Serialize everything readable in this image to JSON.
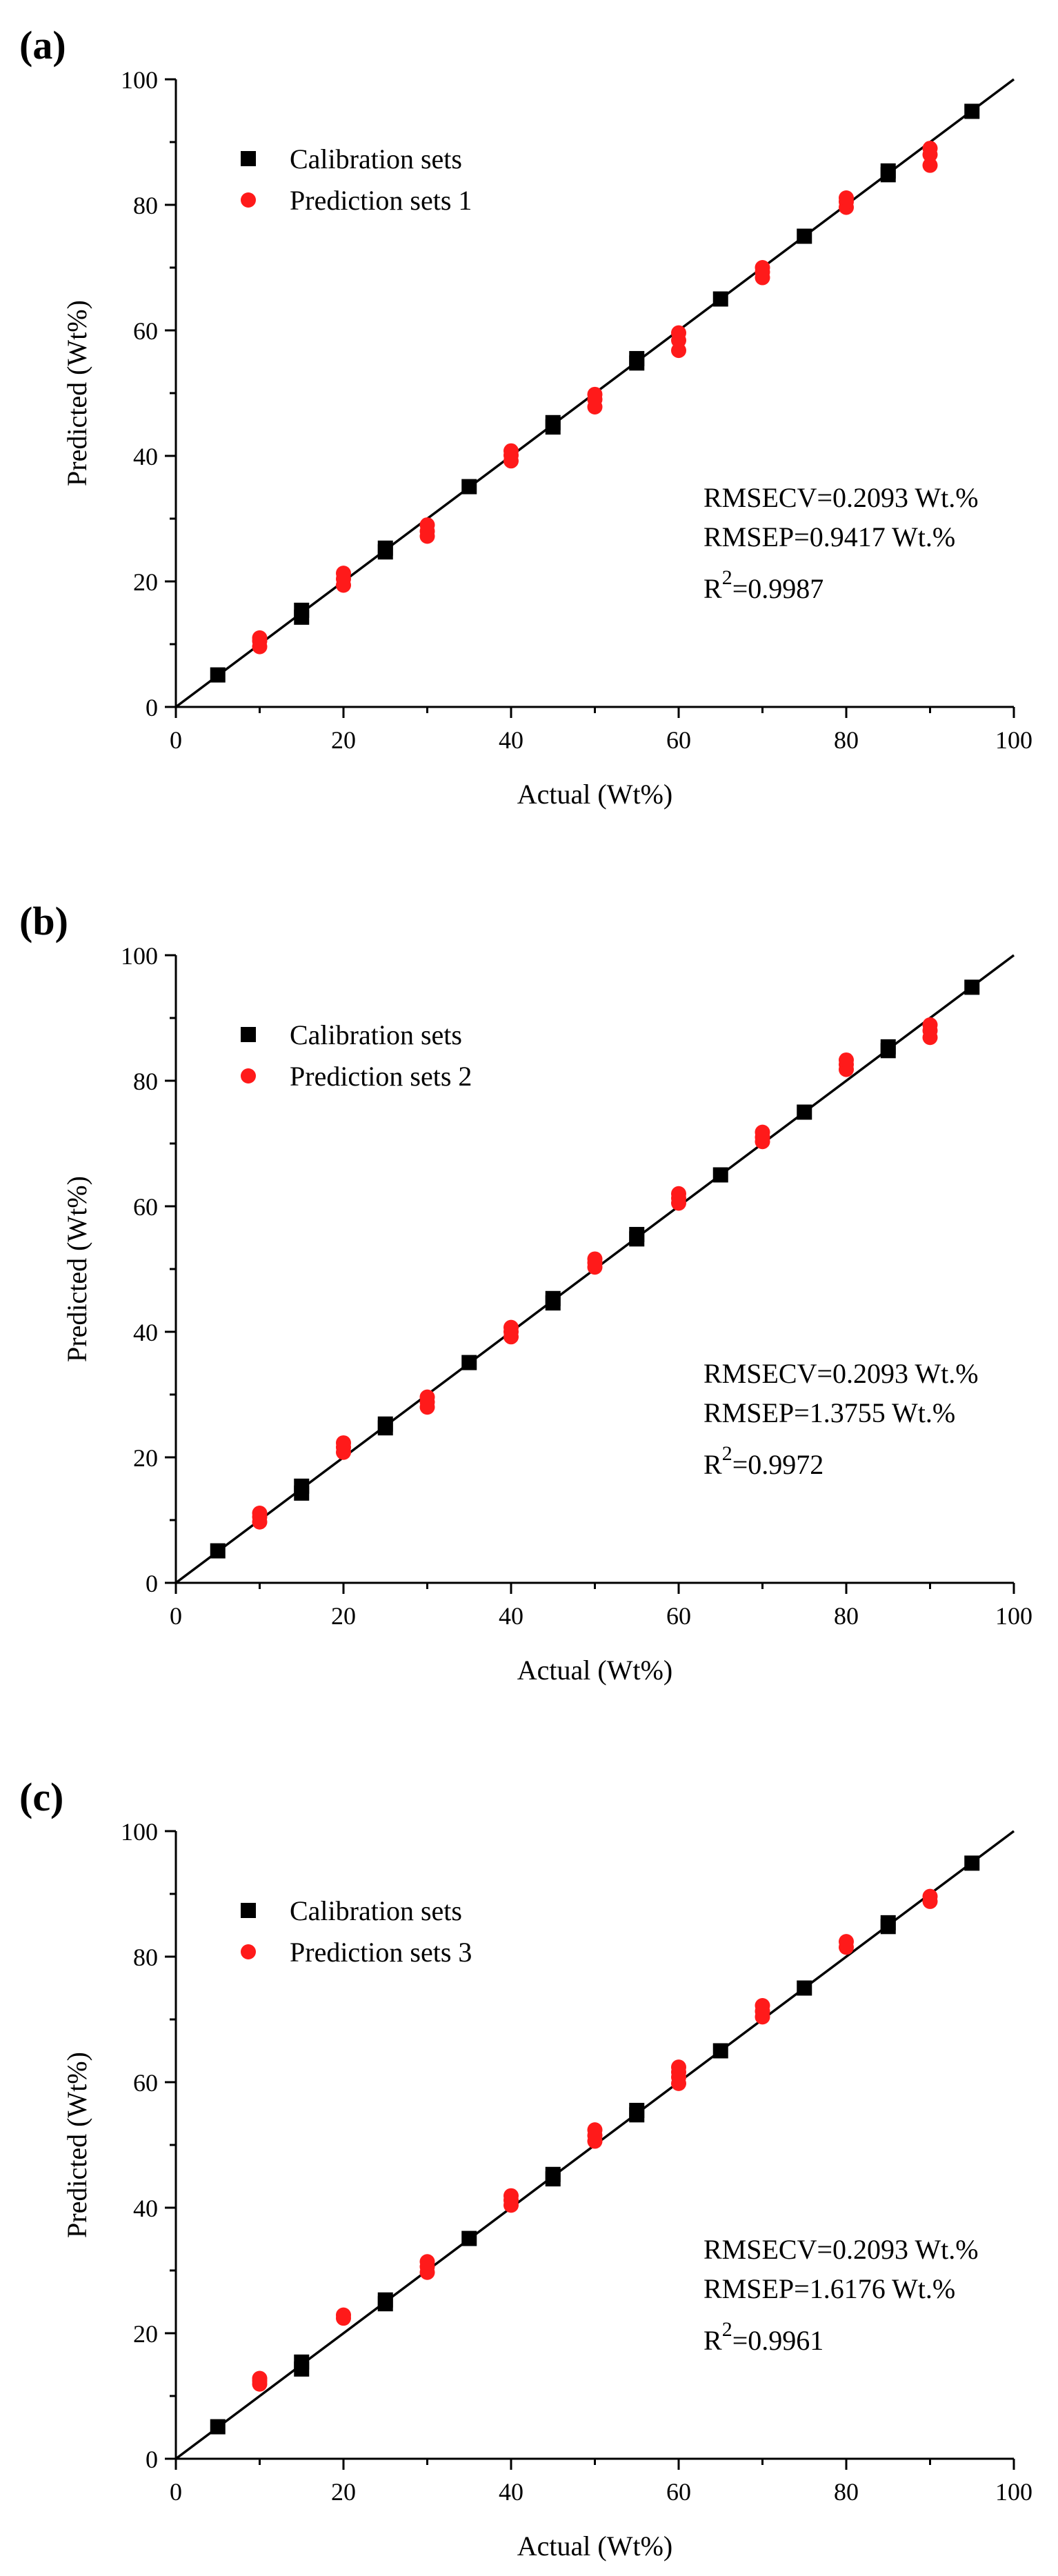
{
  "colors": {
    "calibration": "#000000",
    "prediction": "#ff1a1a",
    "axis": "#000000",
    "fit_line": "#000000"
  },
  "chart_data": [
    {
      "type": "scatter",
      "panel_label": "(a)",
      "xlabel": "Actual (Wt%)",
      "ylabel": "Predicted (Wt%)",
      "xlim": [
        0,
        100
      ],
      "ylim": [
        0,
        100
      ],
      "x_ticks": [
        0,
        20,
        40,
        60,
        80,
        100
      ],
      "y_ticks": [
        0,
        20,
        40,
        60,
        80,
        100
      ],
      "x_tick_labels": [
        "0",
        "20",
        "40",
        "60",
        "80",
        "100"
      ],
      "y_tick_labels": [
        "0",
        "20",
        "40",
        "60",
        "80",
        "100"
      ],
      "legend_position": "top-left",
      "identity_line": {
        "x": [
          0,
          100
        ],
        "y": [
          0,
          100
        ]
      },
      "series": [
        {
          "name": "Calibration sets",
          "marker": "square",
          "points": [
            {
              "x": 5,
              "y": 5.1
            },
            {
              "x": 15,
              "y": 14.3
            },
            {
              "x": 15,
              "y": 15.4
            },
            {
              "x": 25,
              "y": 24.7
            },
            {
              "x": 25,
              "y": 25.3
            },
            {
              "x": 35,
              "y": 35.1
            },
            {
              "x": 45,
              "y": 44.6
            },
            {
              "x": 45,
              "y": 45.3
            },
            {
              "x": 55,
              "y": 54.8
            },
            {
              "x": 55,
              "y": 55.5
            },
            {
              "x": 65,
              "y": 65.0
            },
            {
              "x": 75,
              "y": 75.0
            },
            {
              "x": 85,
              "y": 84.8
            },
            {
              "x": 85,
              "y": 85.4
            },
            {
              "x": 95,
              "y": 94.9
            }
          ]
        },
        {
          "name": "Prediction sets 1",
          "marker": "circle",
          "points": [
            {
              "x": 10,
              "y": 9.6
            },
            {
              "x": 10,
              "y": 10.5
            },
            {
              "x": 10,
              "y": 11.0
            },
            {
              "x": 20,
              "y": 19.4
            },
            {
              "x": 20,
              "y": 20.4
            },
            {
              "x": 20,
              "y": 21.3
            },
            {
              "x": 30,
              "y": 27.2
            },
            {
              "x": 30,
              "y": 28.0
            },
            {
              "x": 30,
              "y": 29.0
            },
            {
              "x": 40,
              "y": 39.2
            },
            {
              "x": 40,
              "y": 40.1
            },
            {
              "x": 40,
              "y": 40.8
            },
            {
              "x": 50,
              "y": 47.8
            },
            {
              "x": 50,
              "y": 49.0
            },
            {
              "x": 50,
              "y": 49.8
            },
            {
              "x": 60,
              "y": 56.8
            },
            {
              "x": 60,
              "y": 58.4
            },
            {
              "x": 60,
              "y": 59.6
            },
            {
              "x": 70,
              "y": 68.4
            },
            {
              "x": 70,
              "y": 69.3
            },
            {
              "x": 70,
              "y": 70.0
            },
            {
              "x": 80,
              "y": 79.6
            },
            {
              "x": 80,
              "y": 80.5
            },
            {
              "x": 80,
              "y": 81.1
            },
            {
              "x": 90,
              "y": 86.3
            },
            {
              "x": 90,
              "y": 88.0
            },
            {
              "x": 90,
              "y": 89.0
            }
          ]
        }
      ],
      "annotations": {
        "rmsecv": "RMSECV=0.2093 Wt.%",
        "rmsep": "RMSEP=0.9417 Wt.%",
        "r2_prefix": "R",
        "r2_sup": "2",
        "r2_value": "=0.9987"
      }
    },
    {
      "type": "scatter",
      "panel_label": "(b)",
      "xlabel": "Actual (Wt%)",
      "ylabel": "Predicted (Wt%)",
      "xlim": [
        0,
        100
      ],
      "ylim": [
        0,
        100
      ],
      "x_ticks": [
        0,
        20,
        40,
        60,
        80,
        100
      ],
      "y_ticks": [
        0,
        20,
        40,
        60,
        80,
        100
      ],
      "x_tick_labels": [
        "0",
        "20",
        "40",
        "60",
        "80",
        "100"
      ],
      "y_tick_labels": [
        "0",
        "20",
        "40",
        "60",
        "80",
        "100"
      ],
      "legend_position": "top-left",
      "identity_line": {
        "x": [
          0,
          100
        ],
        "y": [
          0,
          100
        ]
      },
      "series": [
        {
          "name": "Calibration sets",
          "marker": "square",
          "points": [
            {
              "x": 5,
              "y": 5.1
            },
            {
              "x": 15,
              "y": 14.3
            },
            {
              "x": 15,
              "y": 15.4
            },
            {
              "x": 25,
              "y": 24.7
            },
            {
              "x": 25,
              "y": 25.3
            },
            {
              "x": 35,
              "y": 35.1
            },
            {
              "x": 45,
              "y": 44.6
            },
            {
              "x": 45,
              "y": 45.3
            },
            {
              "x": 55,
              "y": 54.8
            },
            {
              "x": 55,
              "y": 55.5
            },
            {
              "x": 65,
              "y": 65.0
            },
            {
              "x": 75,
              "y": 75.0
            },
            {
              "x": 85,
              "y": 84.8
            },
            {
              "x": 85,
              "y": 85.4
            },
            {
              "x": 95,
              "y": 94.9
            }
          ]
        },
        {
          "name": "Prediction sets 2",
          "marker": "circle",
          "points": [
            {
              "x": 10,
              "y": 9.7
            },
            {
              "x": 10,
              "y": 10.5
            },
            {
              "x": 10,
              "y": 11.1
            },
            {
              "x": 20,
              "y": 20.8
            },
            {
              "x": 20,
              "y": 21.6
            },
            {
              "x": 20,
              "y": 22.3
            },
            {
              "x": 30,
              "y": 28.0
            },
            {
              "x": 30,
              "y": 28.8
            },
            {
              "x": 30,
              "y": 29.6
            },
            {
              "x": 40,
              "y": 39.2
            },
            {
              "x": 40,
              "y": 40.0
            },
            {
              "x": 40,
              "y": 40.7
            },
            {
              "x": 50,
              "y": 50.3
            },
            {
              "x": 50,
              "y": 51.0
            },
            {
              "x": 50,
              "y": 51.6
            },
            {
              "x": 60,
              "y": 60.5
            },
            {
              "x": 60,
              "y": 61.3
            },
            {
              "x": 60,
              "y": 62.0
            },
            {
              "x": 70,
              "y": 70.3
            },
            {
              "x": 70,
              "y": 71.0
            },
            {
              "x": 70,
              "y": 71.8
            },
            {
              "x": 80,
              "y": 81.8
            },
            {
              "x": 80,
              "y": 82.6
            },
            {
              "x": 80,
              "y": 83.3
            },
            {
              "x": 90,
              "y": 86.9
            },
            {
              "x": 90,
              "y": 88.0
            },
            {
              "x": 90,
              "y": 88.9
            }
          ]
        }
      ],
      "annotations": {
        "rmsecv": "RMSECV=0.2093 Wt.%",
        "rmsep": "RMSEP=1.3755 Wt.%",
        "r2_prefix": "R",
        "r2_sup": "2",
        "r2_value": "=0.9972"
      }
    },
    {
      "type": "scatter",
      "panel_label": "(c)",
      "xlabel": "Actual (Wt%)",
      "ylabel": "Predicted (Wt%)",
      "xlim": [
        0,
        100
      ],
      "ylim": [
        0,
        100
      ],
      "x_ticks": [
        0,
        20,
        40,
        60,
        80,
        100
      ],
      "y_ticks": [
        0,
        20,
        40,
        60,
        80,
        100
      ],
      "x_tick_labels": [
        "0",
        "20",
        "40",
        "60",
        "80",
        "100"
      ],
      "y_tick_labels": [
        "0",
        "20",
        "40",
        "60",
        "80",
        "100"
      ],
      "legend_position": "top-left",
      "identity_line": {
        "x": [
          0,
          100
        ],
        "y": [
          0,
          100
        ]
      },
      "series": [
        {
          "name": "Calibration sets",
          "marker": "square",
          "points": [
            {
              "x": 5,
              "y": 5.1
            },
            {
              "x": 15,
              "y": 14.3
            },
            {
              "x": 15,
              "y": 15.4
            },
            {
              "x": 25,
              "y": 24.7
            },
            {
              "x": 25,
              "y": 25.3
            },
            {
              "x": 35,
              "y": 35.1
            },
            {
              "x": 45,
              "y": 44.6
            },
            {
              "x": 45,
              "y": 45.3
            },
            {
              "x": 55,
              "y": 54.8
            },
            {
              "x": 55,
              "y": 55.5
            },
            {
              "x": 65,
              "y": 65.0
            },
            {
              "x": 75,
              "y": 75.0
            },
            {
              "x": 85,
              "y": 84.8
            },
            {
              "x": 85,
              "y": 85.4
            },
            {
              "x": 95,
              "y": 94.9
            }
          ]
        },
        {
          "name": "Prediction sets 3",
          "marker": "circle",
          "points": [
            {
              "x": 10,
              "y": 11.9
            },
            {
              "x": 10,
              "y": 12.4
            },
            {
              "x": 10,
              "y": 12.8
            },
            {
              "x": 20,
              "y": 22.4
            },
            {
              "x": 20,
              "y": 22.9
            },
            {
              "x": 30,
              "y": 29.7
            },
            {
              "x": 30,
              "y": 30.6
            },
            {
              "x": 30,
              "y": 31.4
            },
            {
              "x": 40,
              "y": 40.4
            },
            {
              "x": 40,
              "y": 41.2
            },
            {
              "x": 40,
              "y": 41.9
            },
            {
              "x": 50,
              "y": 50.6
            },
            {
              "x": 50,
              "y": 51.5
            },
            {
              "x": 50,
              "y": 52.4
            },
            {
              "x": 60,
              "y": 59.8
            },
            {
              "x": 60,
              "y": 60.8
            },
            {
              "x": 60,
              "y": 61.6
            },
            {
              "x": 60,
              "y": 62.4
            },
            {
              "x": 70,
              "y": 70.4
            },
            {
              "x": 70,
              "y": 71.3
            },
            {
              "x": 70,
              "y": 72.2
            },
            {
              "x": 80,
              "y": 81.5
            },
            {
              "x": 80,
              "y": 82.4
            },
            {
              "x": 90,
              "y": 88.8
            },
            {
              "x": 90,
              "y": 89.6
            }
          ]
        }
      ],
      "annotations": {
        "rmsecv": "RMSECV=0.2093 Wt.%",
        "rmsep": "RMSEP=1.6176 Wt.%",
        "r2_prefix": "R",
        "r2_sup": "2",
        "r2_value": "=0.9961"
      }
    }
  ]
}
